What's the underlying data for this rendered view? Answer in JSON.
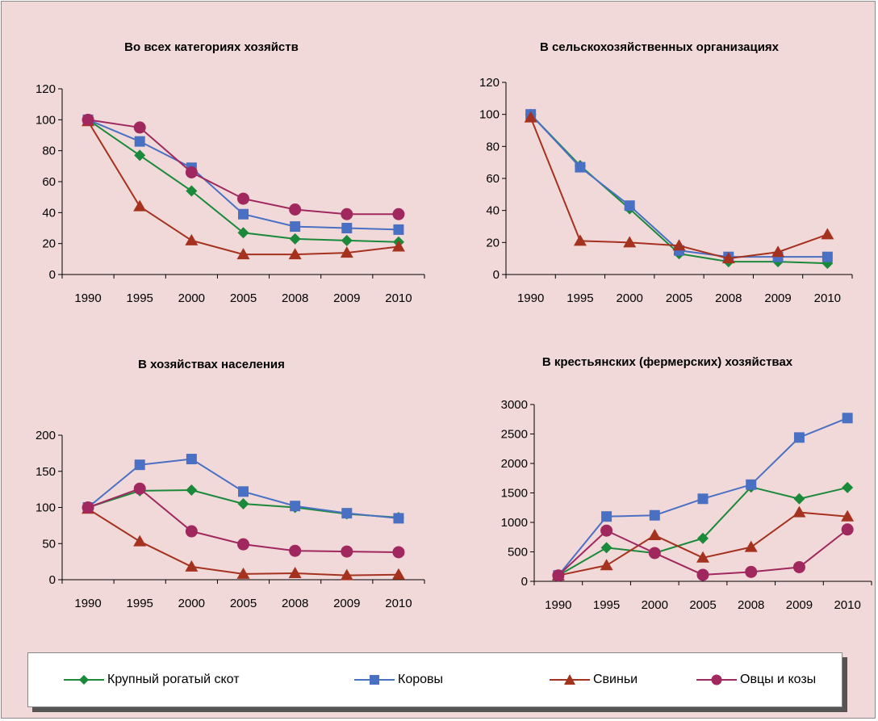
{
  "colors": {
    "cattle": "#1a8a3a",
    "cows": "#4a70c4",
    "pigs": "#a5321e",
    "sheep": "#a0285e"
  },
  "legend": [
    {
      "name": "Крупный рогатый скот",
      "color": "#1a8a3a",
      "marker": "diamond"
    },
    {
      "name": "Коровы",
      "color": "#4a70c4",
      "marker": "square"
    },
    {
      "name": "Свиньи",
      "color": "#a5321e",
      "marker": "triangle"
    },
    {
      "name": "Овцы и козы",
      "color": "#a0285e",
      "marker": "circle"
    }
  ],
  "chart_data": [
    {
      "type": "line",
      "title": "Во всех категориях хозяйств",
      "categories": [
        "1990",
        "1995",
        "2000",
        "2005",
        "2008",
        "2009",
        "2010"
      ],
      "ylim": [
        0,
        120
      ],
      "yticks": [
        0,
        20,
        40,
        60,
        80,
        100,
        120
      ],
      "series": [
        {
          "name": "Крупный рогатый скот",
          "values": [
            100,
            77,
            54,
            27,
            23,
            22,
            21
          ]
        },
        {
          "name": "Коровы",
          "values": [
            100,
            86,
            69,
            39,
            31,
            30,
            29
          ]
        },
        {
          "name": "Свиньи",
          "values": [
            99,
            44,
            22,
            13,
            13,
            14,
            18
          ]
        },
        {
          "name": "Овцы и козы",
          "values": [
            100,
            95,
            66,
            49,
            42,
            39,
            39
          ]
        }
      ]
    },
    {
      "type": "line",
      "title": "В сельскохозяйственных  организациях",
      "categories": [
        "1990",
        "1995",
        "2000",
        "2005",
        "2008",
        "2009",
        "2010"
      ],
      "ylim": [
        0,
        120
      ],
      "yticks": [
        0,
        20,
        40,
        60,
        80,
        100,
        120
      ],
      "series": [
        {
          "name": "Крупный рогатый скот",
          "values": [
            100,
            68,
            41,
            13,
            8,
            8,
            7
          ]
        },
        {
          "name": "Коровы",
          "values": [
            100,
            67,
            43,
            15,
            11,
            11,
            11
          ]
        },
        {
          "name": "Свиньи",
          "values": [
            98,
            21,
            20,
            18,
            10,
            14,
            25
          ]
        }
      ]
    },
    {
      "type": "line",
      "title": "В хозяйствах населения",
      "categories": [
        "1990",
        "1995",
        "2000",
        "2005",
        "2008",
        "2009",
        "2010"
      ],
      "ylim": [
        0,
        200
      ],
      "yticks": [
        0,
        50,
        100,
        150,
        200
      ],
      "series": [
        {
          "name": "Крупный рогатый скот",
          "values": [
            100,
            123,
            124,
            105,
            100,
            91,
            86
          ]
        },
        {
          "name": "Коровы",
          "values": [
            100,
            159,
            167,
            122,
            102,
            92,
            85
          ]
        },
        {
          "name": "Свиньи",
          "values": [
            98,
            53,
            18,
            8,
            9,
            6,
            7
          ]
        },
        {
          "name": "Овцы и козы",
          "values": [
            100,
            126,
            67,
            49,
            40,
            39,
            38
          ]
        }
      ]
    },
    {
      "type": "line",
      "title": "В крестьянских (фермерских) хозяйствах",
      "categories": [
        "1990",
        "1995",
        "2000",
        "2005",
        "2008",
        "2009",
        "2010"
      ],
      "ylim": [
        0,
        3000
      ],
      "yticks": [
        0,
        500,
        1000,
        1500,
        2000,
        2500,
        3000
      ],
      "series": [
        {
          "name": "Крупный рогатый скот",
          "values": [
            100,
            570,
            480,
            730,
            1600,
            1400,
            1590
          ]
        },
        {
          "name": "Коровы",
          "values": [
            100,
            1100,
            1120,
            1400,
            1640,
            2440,
            2770
          ]
        },
        {
          "name": "Свиньи",
          "values": [
            100,
            270,
            780,
            400,
            580,
            1170,
            1100
          ]
        },
        {
          "name": "Овцы и козы",
          "values": [
            100,
            860,
            480,
            110,
            160,
            240,
            880
          ]
        }
      ]
    }
  ]
}
